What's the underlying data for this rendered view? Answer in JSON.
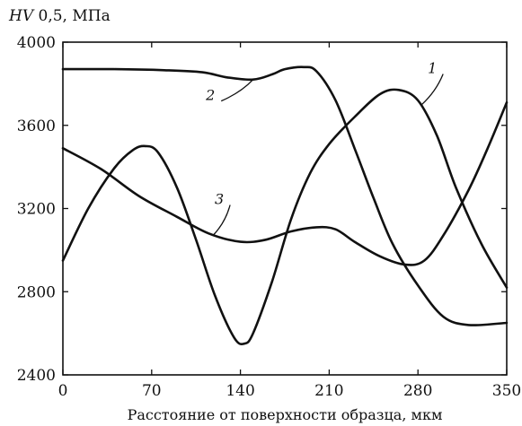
{
  "chart_data": {
    "type": "line",
    "ylabel_symbol": "HV",
    "ylabel_rest": " 0,5, МПа",
    "xlabel": "Расстояние от поверхности образца, мкм",
    "xlim": [
      0,
      350
    ],
    "ylim": [
      2400,
      4000
    ],
    "xticks": [
      "0",
      "70",
      "140",
      "210",
      "280",
      "350"
    ],
    "yticks": [
      "2400",
      "2800",
      "3200",
      "3600",
      "4000"
    ],
    "grid": false,
    "series": [
      {
        "name": "1",
        "x": [
          0,
          20,
          40,
          55,
          65,
          75,
          90,
          105,
          120,
          135,
          143,
          150,
          165,
          180,
          195,
          210,
          230,
          250,
          265,
          280,
          295,
          310,
          330,
          350
        ],
        "values": [
          2950,
          3200,
          3390,
          3480,
          3500,
          3470,
          3300,
          3050,
          2780,
          2580,
          2550,
          2600,
          2850,
          3150,
          3370,
          3510,
          3640,
          3750,
          3770,
          3720,
          3550,
          3300,
          3030,
          2820
        ]
      },
      {
        "name": "2",
        "x": [
          0,
          40,
          80,
          110,
          130,
          150,
          165,
          175,
          190,
          200,
          215,
          230,
          245,
          260,
          280,
          300,
          320,
          350
        ],
        "values": [
          3870,
          3870,
          3865,
          3855,
          3830,
          3820,
          3845,
          3870,
          3880,
          3860,
          3720,
          3490,
          3250,
          3030,
          2830,
          2680,
          2640,
          2650
        ]
      },
      {
        "name": "3",
        "x": [
          0,
          30,
          60,
          90,
          115,
          140,
          160,
          180,
          200,
          215,
          230,
          250,
          270,
          285,
          300,
          320,
          335,
          350
        ],
        "values": [
          3490,
          3390,
          3260,
          3160,
          3080,
          3040,
          3050,
          3090,
          3110,
          3100,
          3040,
          2970,
          2930,
          2950,
          3070,
          3290,
          3490,
          3710
        ]
      }
    ],
    "curve_labels": [
      {
        "text": "1",
        "x": 297,
        "y": 3860,
        "anchor_x": 283,
        "anchor_y": 3700
      },
      {
        "text": "2",
        "x": 122,
        "y": 3730,
        "anchor_x": 150,
        "anchor_y": 3820
      },
      {
        "text": "3",
        "x": 129,
        "y": 3230,
        "anchor_x": 119,
        "anchor_y": 3075
      }
    ]
  }
}
